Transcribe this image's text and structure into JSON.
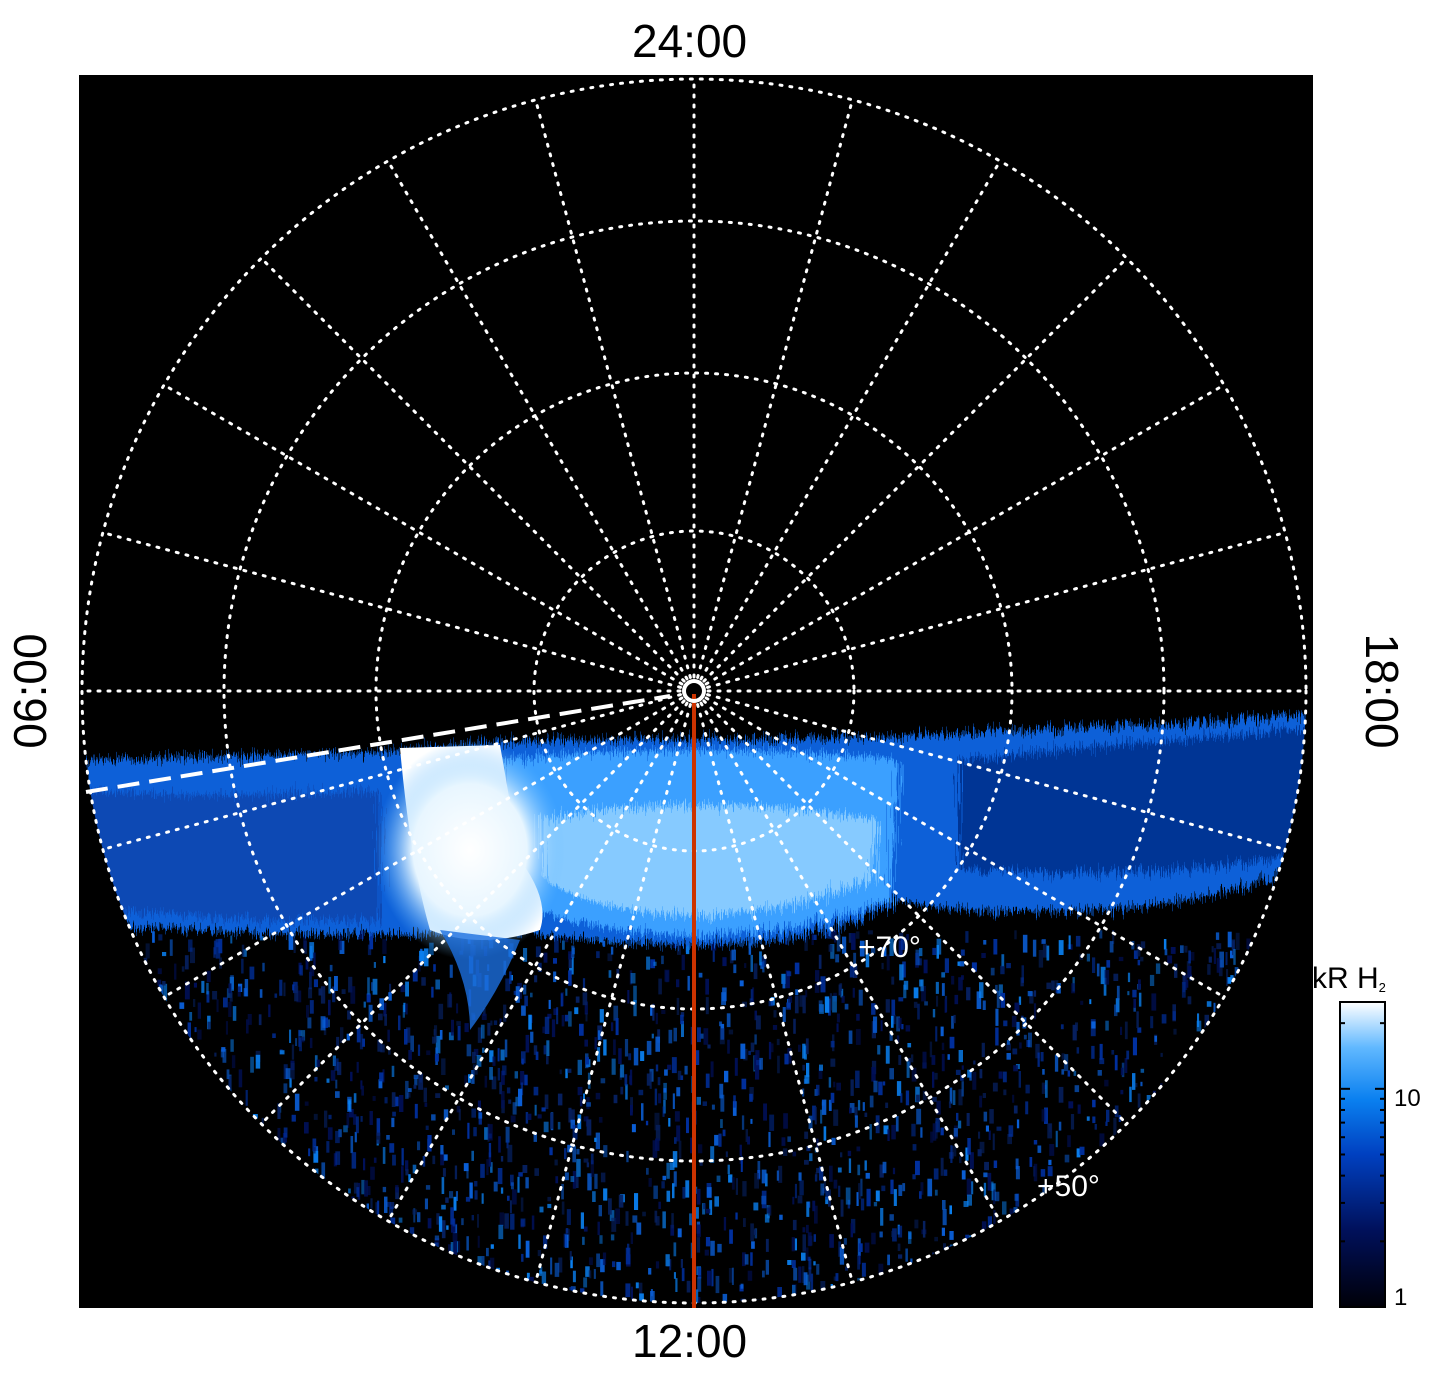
{
  "image": {
    "labels": {
      "top": "24:00",
      "bottom": "12:00",
      "left": "06:00",
      "right": "18:00"
    },
    "latitude_labels": [
      "+70°",
      "+50°"
    ],
    "colorbar": {
      "title_main": "kR H",
      "title_sub": "2",
      "ticks": [
        "10",
        "1"
      ]
    },
    "colors": {
      "background": "#000000",
      "grid": "#ffffff",
      "noon_meridian": "#cc3300",
      "colormap": [
        "#000008",
        "#00105a",
        "#0040c0",
        "#0a80f0",
        "#60b8ff",
        "#ffffff"
      ]
    }
  }
}
